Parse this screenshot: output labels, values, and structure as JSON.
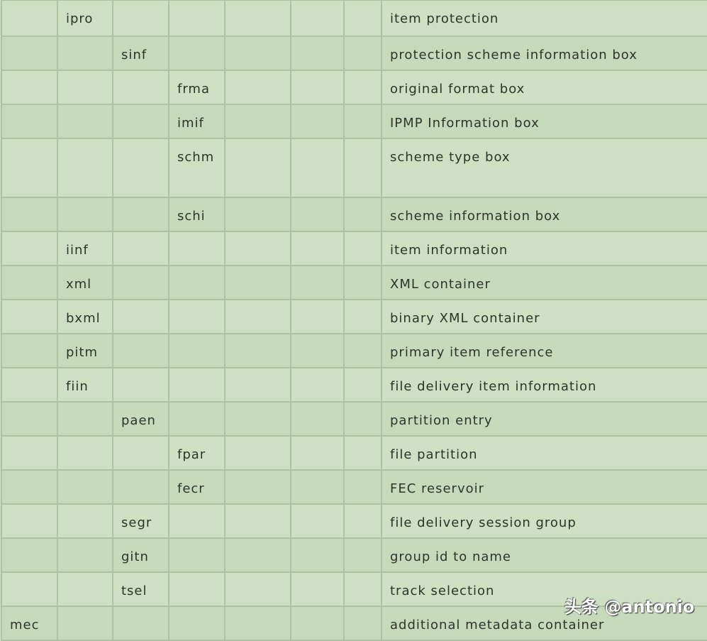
{
  "rows": [
    {
      "cells": [
        "",
        "ipro",
        "",
        "",
        "",
        "",
        "",
        "item protection"
      ]
    },
    {
      "cells": [
        "",
        "",
        "sinf",
        "",
        "",
        "",
        "",
        "protection scheme information box"
      ]
    },
    {
      "cells": [
        "",
        "",
        "",
        "frma",
        "",
        "",
        "",
        "original format box"
      ]
    },
    {
      "cells": [
        "",
        "",
        "",
        "imif",
        "",
        "",
        "",
        "IPMP Information box"
      ]
    },
    {
      "cells": [
        "",
        "",
        "",
        "schm",
        "",
        "",
        "",
        "scheme type box"
      ]
    },
    {
      "cells": [
        "",
        "",
        "",
        "schi",
        "",
        "",
        "",
        "scheme information box"
      ]
    },
    {
      "cells": [
        "",
        "iinf",
        "",
        "",
        "",
        "",
        "",
        "item information"
      ]
    },
    {
      "cells": [
        "",
        "xml",
        "",
        "",
        "",
        "",
        "",
        "XML container"
      ]
    },
    {
      "cells": [
        "",
        "bxml",
        "",
        "",
        "",
        "",
        "",
        "binary XML container"
      ]
    },
    {
      "cells": [
        "",
        "pitm",
        "",
        "",
        "",
        "",
        "",
        "primary item reference"
      ]
    },
    {
      "cells": [
        "",
        "fiin",
        "",
        "",
        "",
        "",
        "",
        "file delivery item information"
      ]
    },
    {
      "cells": [
        "",
        "",
        "paen",
        "",
        "",
        "",
        "",
        "partition entry"
      ]
    },
    {
      "cells": [
        "",
        "",
        "",
        "fpar",
        "",
        "",
        "",
        "file partition"
      ]
    },
    {
      "cells": [
        "",
        "",
        "",
        "fecr",
        "",
        "",
        "",
        "FEC reservoir"
      ]
    },
    {
      "cells": [
        "",
        "",
        "segr",
        "",
        "",
        "",
        "",
        "file delivery session group"
      ]
    },
    {
      "cells": [
        "",
        "",
        "gitn",
        "",
        "",
        "",
        "",
        "group id to name"
      ]
    },
    {
      "cells": [
        "",
        "",
        "tsel",
        "",
        "",
        "",
        "",
        "track selection"
      ]
    },
    {
      "cells": [
        "mec",
        "",
        "",
        "",
        "",
        "",
        "",
        "additional metadata container"
      ]
    }
  ],
  "watermark": "头条 @antonio"
}
